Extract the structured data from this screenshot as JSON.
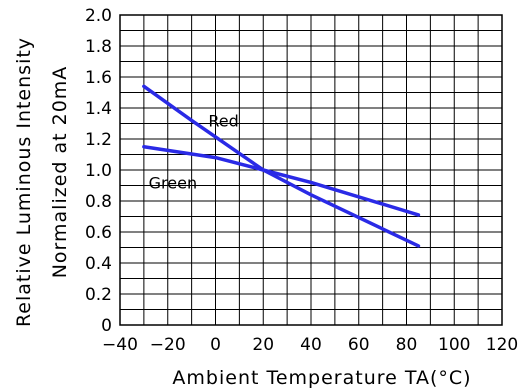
{
  "chart_data": {
    "type": "line",
    "title": "",
    "xlabel": "Ambient Temperature TA(°C)",
    "ylabel_line1": "Relative Luminous Intensity",
    "ylabel_line2": "Normalized at 20mA",
    "xlim": [
      -40,
      120
    ],
    "ylim": [
      0,
      2.0
    ],
    "x_ticks": [
      "−40",
      "−20",
      "0",
      "20",
      "40",
      "60",
      "80",
      "100",
      "120"
    ],
    "x_tick_values": [
      -40,
      -20,
      0,
      20,
      40,
      60,
      80,
      100,
      120
    ],
    "y_ticks": [
      "0",
      "0.2",
      "0.4",
      "0.6",
      "0.8",
      "1.0",
      "1.2",
      "1.4",
      "1.6",
      "1.8",
      "2.0"
    ],
    "y_tick_values": [
      0,
      0.2,
      0.4,
      0.6,
      0.8,
      1.0,
      1.2,
      1.4,
      1.6,
      1.8,
      2.0
    ],
    "grid": true,
    "line_color": "#2a2ae6",
    "series": [
      {
        "name": "Red",
        "x": [
          -30,
          -10,
          20,
          40,
          85
        ],
        "y": [
          1.54,
          1.32,
          1.0,
          0.84,
          0.51
        ]
      },
      {
        "name": "Green",
        "x": [
          -30,
          0,
          20,
          40,
          85
        ],
        "y": [
          1.15,
          1.08,
          1.0,
          0.92,
          0.71
        ]
      }
    ]
  }
}
